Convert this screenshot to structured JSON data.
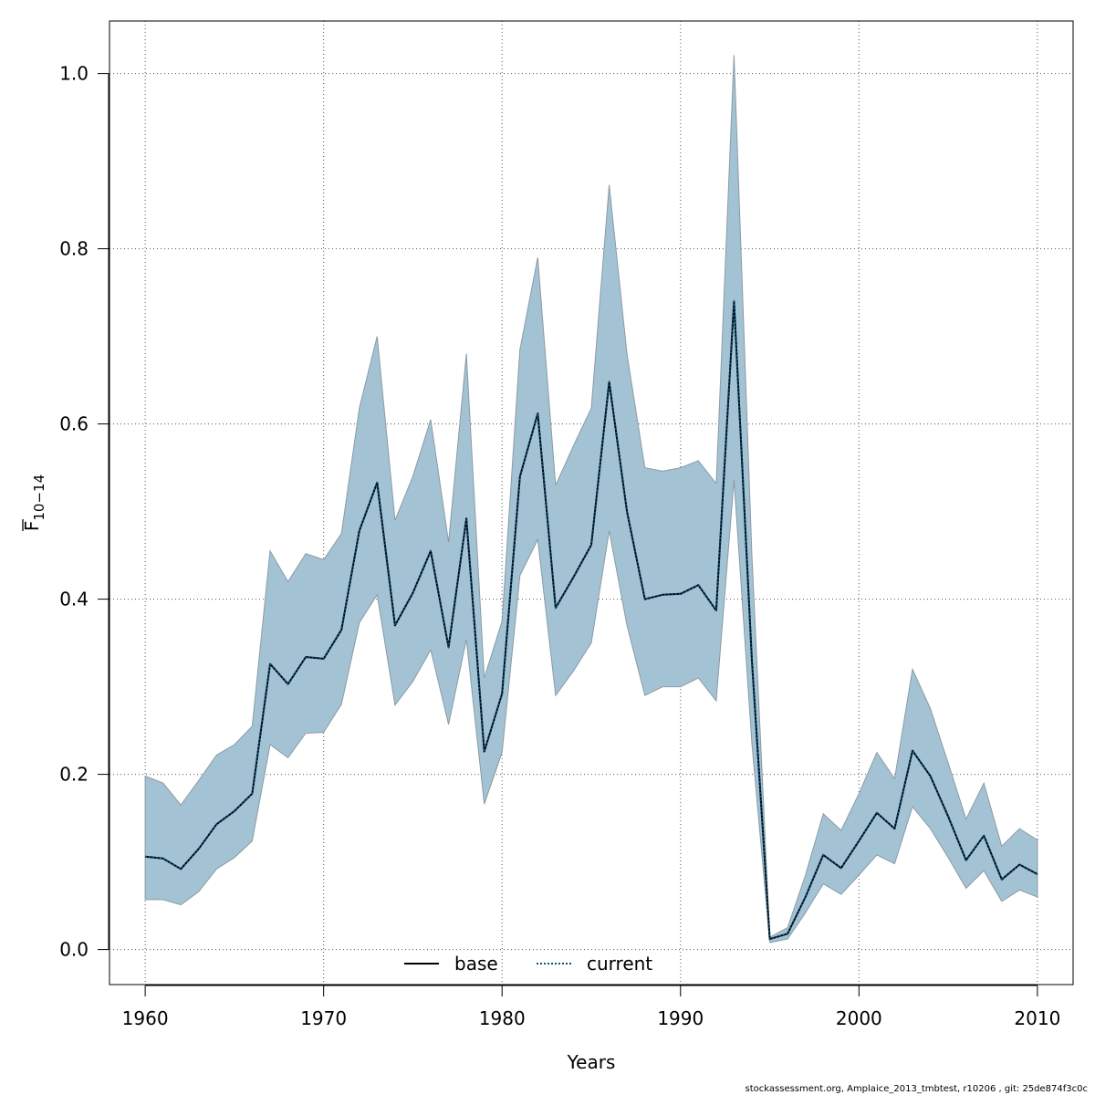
{
  "chart_data": {
    "type": "area",
    "xlabel": "Years",
    "ylabel_main": "F",
    "ylabel_sub": "10−14",
    "xlim": [
      1958,
      2012
    ],
    "ylim": [
      -0.04,
      1.06
    ],
    "x_ticks": [
      1960,
      1970,
      1980,
      1990,
      2000,
      2010
    ],
    "y_ticks": [
      0.0,
      0.2,
      0.4,
      0.6,
      0.8,
      1.0
    ],
    "y_tick_labels": [
      "0.0",
      "0.2",
      "0.4",
      "0.6",
      "0.8",
      "1.0"
    ],
    "grid": true,
    "legend_position": "bottom-center",
    "years": [
      1960,
      1961,
      1962,
      1963,
      1964,
      1965,
      1966,
      1967,
      1968,
      1969,
      1970,
      1971,
      1972,
      1973,
      1974,
      1975,
      1976,
      1977,
      1978,
      1979,
      1980,
      1981,
      1982,
      1983,
      1984,
      1985,
      1986,
      1987,
      1988,
      1989,
      1990,
      1991,
      1992,
      1993,
      1994,
      1995,
      1996,
      1997,
      1998,
      1999,
      2000,
      2001,
      2002,
      2003,
      2004,
      2005,
      2006,
      2007,
      2008,
      2009,
      2010
    ],
    "band_upper": [
      0.198,
      0.19,
      0.165,
      0.193,
      0.222,
      0.234,
      0.255,
      0.455,
      0.42,
      0.452,
      0.445,
      0.475,
      0.618,
      0.7,
      0.49,
      0.54,
      0.605,
      0.465,
      0.68,
      0.31,
      0.375,
      0.685,
      0.79,
      0.53,
      0.575,
      0.618,
      0.873,
      0.68,
      0.55,
      0.546,
      0.55,
      0.558,
      0.532,
      1.021,
      0.45,
      0.014,
      0.025,
      0.085,
      0.155,
      0.136,
      0.178,
      0.225,
      0.195,
      0.32,
      0.275,
      0.213,
      0.149,
      0.19,
      0.118,
      0.138,
      0.125
    ],
    "band_lower": [
      0.057,
      0.057,
      0.051,
      0.066,
      0.092,
      0.105,
      0.124,
      0.234,
      0.219,
      0.247,
      0.248,
      0.28,
      0.373,
      0.405,
      0.279,
      0.306,
      0.342,
      0.257,
      0.354,
      0.166,
      0.225,
      0.427,
      0.468,
      0.29,
      0.318,
      0.35,
      0.478,
      0.37,
      0.29,
      0.3,
      0.3,
      0.31,
      0.284,
      0.536,
      0.235,
      0.008,
      0.012,
      0.042,
      0.075,
      0.063,
      0.085,
      0.108,
      0.098,
      0.163,
      0.138,
      0.105,
      0.07,
      0.09,
      0.055,
      0.068,
      0.06
    ],
    "band_color": "#a3c3d5",
    "band_edge_color": "#8b9aa3",
    "series": [
      {
        "name": "base",
        "style": "solid",
        "color": "#000000",
        "values": [
          0.106,
          0.104,
          0.092,
          0.115,
          0.143,
          0.158,
          0.178,
          0.326,
          0.303,
          0.334,
          0.332,
          0.365,
          0.478,
          0.533,
          0.37,
          0.407,
          0.455,
          0.345,
          0.492,
          0.226,
          0.292,
          0.54,
          0.612,
          0.39,
          0.425,
          0.462,
          0.648,
          0.5,
          0.4,
          0.405,
          0.406,
          0.416,
          0.387,
          0.74,
          0.33,
          0.012,
          0.018,
          0.06,
          0.108,
          0.093,
          0.124,
          0.156,
          0.138,
          0.227,
          0.198,
          0.152,
          0.102,
          0.13,
          0.08,
          0.097,
          0.086
        ]
      },
      {
        "name": "current",
        "style": "dotted",
        "color": "#0b4f7c",
        "values": [
          0.106,
          0.104,
          0.092,
          0.115,
          0.143,
          0.158,
          0.178,
          0.326,
          0.303,
          0.334,
          0.332,
          0.365,
          0.478,
          0.533,
          0.37,
          0.407,
          0.455,
          0.345,
          0.492,
          0.226,
          0.292,
          0.54,
          0.612,
          0.39,
          0.425,
          0.462,
          0.648,
          0.5,
          0.4,
          0.405,
          0.406,
          0.416,
          0.387,
          0.74,
          0.33,
          0.012,
          0.018,
          0.06,
          0.108,
          0.093,
          0.124,
          0.156,
          0.138,
          0.227,
          0.198,
          0.152,
          0.102,
          0.13,
          0.08,
          0.097,
          0.086
        ]
      }
    ]
  },
  "footer": {
    "note": "stockassessment.org, Amplaice_2013_tmbtest, r10206 , git: 25de874f3c0c"
  }
}
